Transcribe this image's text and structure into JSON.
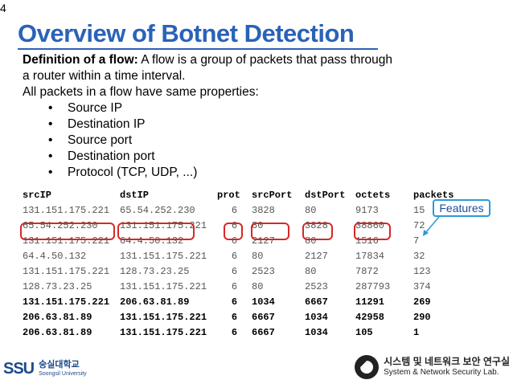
{
  "page_number": "4",
  "title": "Overview of Botnet Detection",
  "definition": {
    "term": "Definition of a flow:",
    "line1_rest": " A flow is a group of packets that pass through",
    "line2": "a router within a time interval.",
    "line3": "All packets in a flow have same properties:"
  },
  "properties": [
    "Source IP",
    "Destination IP",
    "Source port",
    "Destination port",
    "Protocol (TCP, UDP, ...)"
  ],
  "table": {
    "headers": [
      "srcIP",
      "dstIP",
      "prot",
      "srcPort",
      "dstPort",
      "octets",
      "packets"
    ],
    "rows": [
      [
        "131.151.175.221",
        "65.54.252.230",
        "6",
        "3828",
        "80",
        "9173",
        "15"
      ],
      [
        "65.54.252.230",
        "131.151.175.221",
        "6",
        "80",
        "3828",
        "38860",
        "72"
      ],
      [
        "131.151.175.221",
        "64.4.50.132",
        "6",
        "2127",
        "80",
        "1516",
        "7"
      ],
      [
        "64.4.50.132",
        "131.151.175.221",
        "6",
        "80",
        "2127",
        "17834",
        "32"
      ],
      [
        "131.151.175.221",
        "128.73.23.25",
        "6",
        "2523",
        "80",
        "7872",
        "123"
      ],
      [
        "128.73.23.25",
        "131.151.175.221",
        "6",
        "80",
        "2523",
        "287793",
        "374"
      ],
      [
        "131.151.175.221",
        "206.63.81.89",
        "6",
        "1034",
        "6667",
        "11291",
        "269"
      ],
      [
        "206.63.81.89",
        "131.151.175.221",
        "6",
        "6667",
        "1034",
        "42958",
        "290"
      ],
      [
        "206.63.81.89",
        "131.151.175.221",
        "6",
        "6667",
        "1034",
        "105",
        "1"
      ]
    ],
    "bold_rows": [
      6,
      7,
      8
    ]
  },
  "callout": "Features",
  "footer": {
    "university_mark": "SSU",
    "university_ko": "숭실대학교",
    "university_en": "Soongsil University",
    "lab_ko": "시스템 및 네트워크 보안 연구실",
    "lab_en": "System & Network Security Lab."
  },
  "colors": {
    "title": "#2a62b8",
    "highlight": "#d62828",
    "callout_border": "#2a9ad8"
  }
}
